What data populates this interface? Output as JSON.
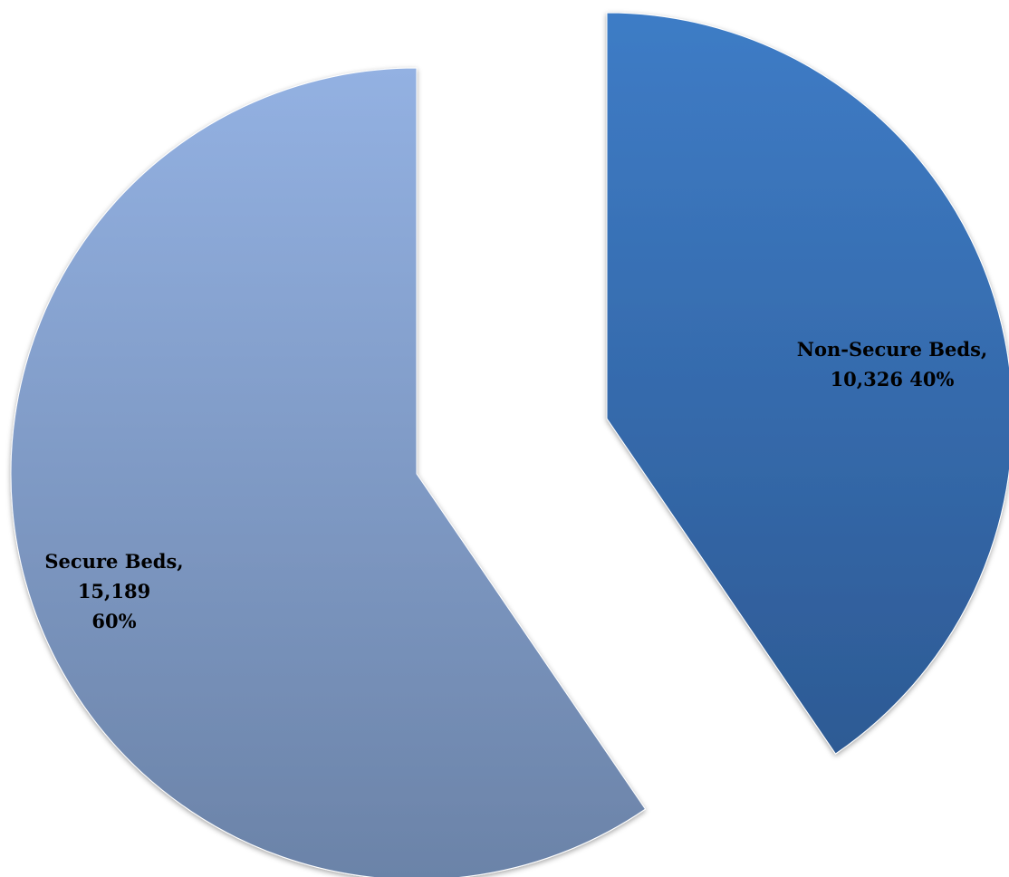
{
  "chart_data": {
    "type": "pie",
    "exploded": true,
    "slices": [
      {
        "name": "Non-Secure Beds",
        "value": 10326,
        "percent": 40,
        "color": "#3a72b8",
        "label_lines": [
          "Non-Secure Beds,",
          "10,326 40%"
        ]
      },
      {
        "name": "Secure Beds",
        "value": 15189,
        "percent": 60,
        "color": "#8aa8d6",
        "label_lines": [
          "Secure Beds,",
          "15,189",
          "60%"
        ]
      }
    ]
  }
}
